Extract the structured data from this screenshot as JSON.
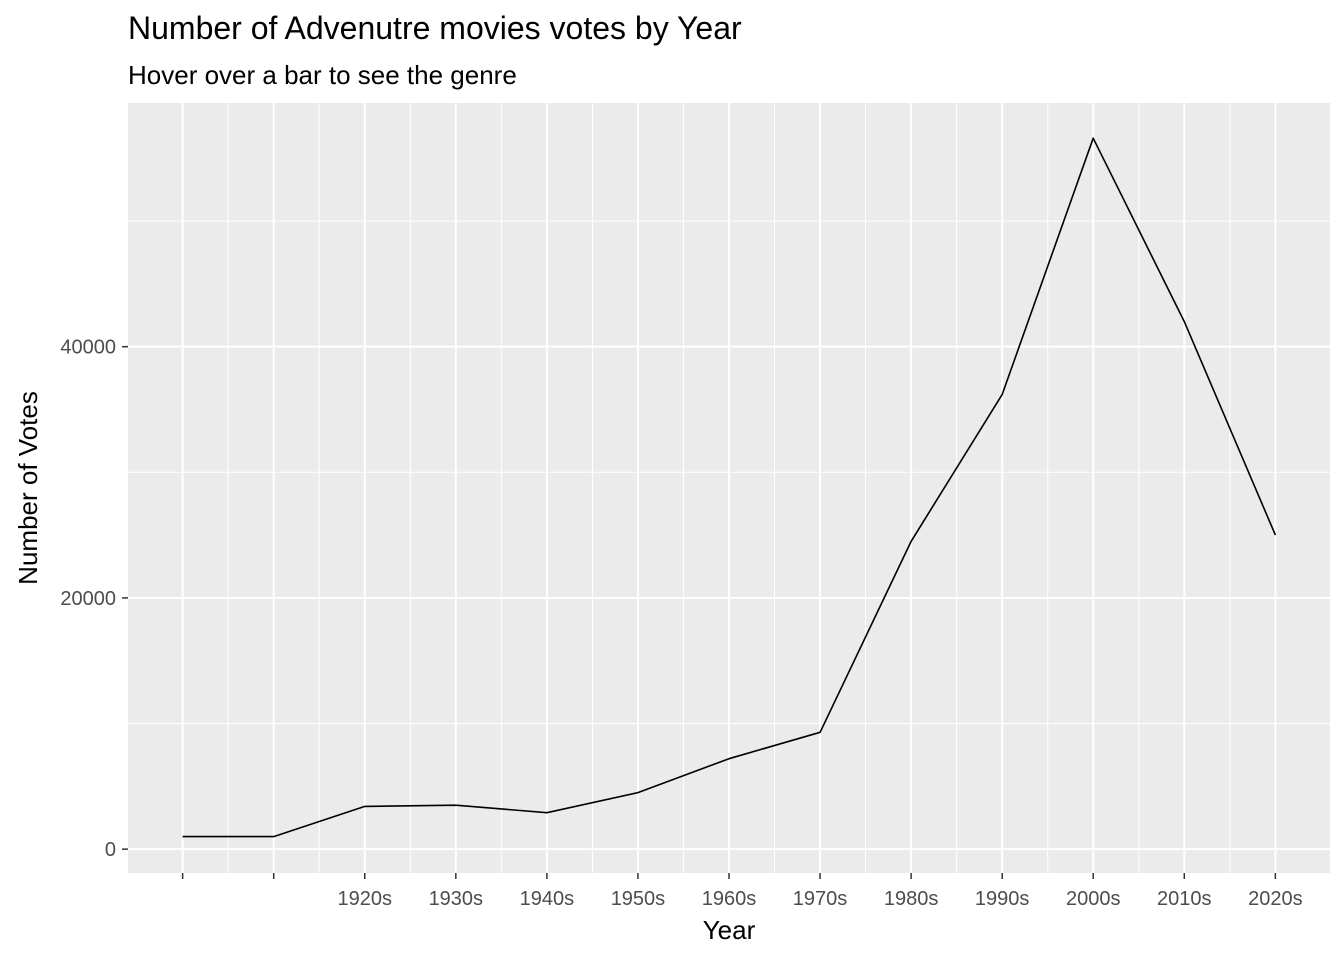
{
  "chart_data": {
    "type": "line",
    "title": "Number of Advenutre movies votes by Year",
    "subtitle": "Hover over a bar to see the genre",
    "xlabel": "Year",
    "ylabel": "Number of Votes",
    "x_positions": [
      0,
      1,
      2,
      3,
      4,
      5,
      6,
      7,
      8,
      9,
      10,
      11,
      12
    ],
    "x_tick_labels": [
      {
        "pos": 2,
        "label": "1920s"
      },
      {
        "pos": 3,
        "label": "1930s"
      },
      {
        "pos": 4,
        "label": "1940s"
      },
      {
        "pos": 5,
        "label": "1950s"
      },
      {
        "pos": 6,
        "label": "1960s"
      },
      {
        "pos": 7,
        "label": "1970s"
      },
      {
        "pos": 8,
        "label": "1980s"
      },
      {
        "pos": 9,
        "label": "1990s"
      },
      {
        "pos": 10,
        "label": "2000s"
      },
      {
        "pos": 11,
        "label": "2010s"
      },
      {
        "pos": 12,
        "label": "2020s"
      }
    ],
    "series": [
      {
        "values": [
          1000,
          1000,
          3400,
          3500,
          2900,
          4500,
          7200,
          9300,
          24500,
          36200,
          56600,
          42000,
          25000
        ]
      }
    ],
    "y_ticks": [
      0,
      20000,
      40000
    ],
    "ylim": [
      -1900,
      59400
    ],
    "xlim": [
      -0.6,
      12.6
    ],
    "grid": true,
    "line_color": "#000000",
    "panel_background": "#ebebeb",
    "grid_color": "#ffffff"
  }
}
